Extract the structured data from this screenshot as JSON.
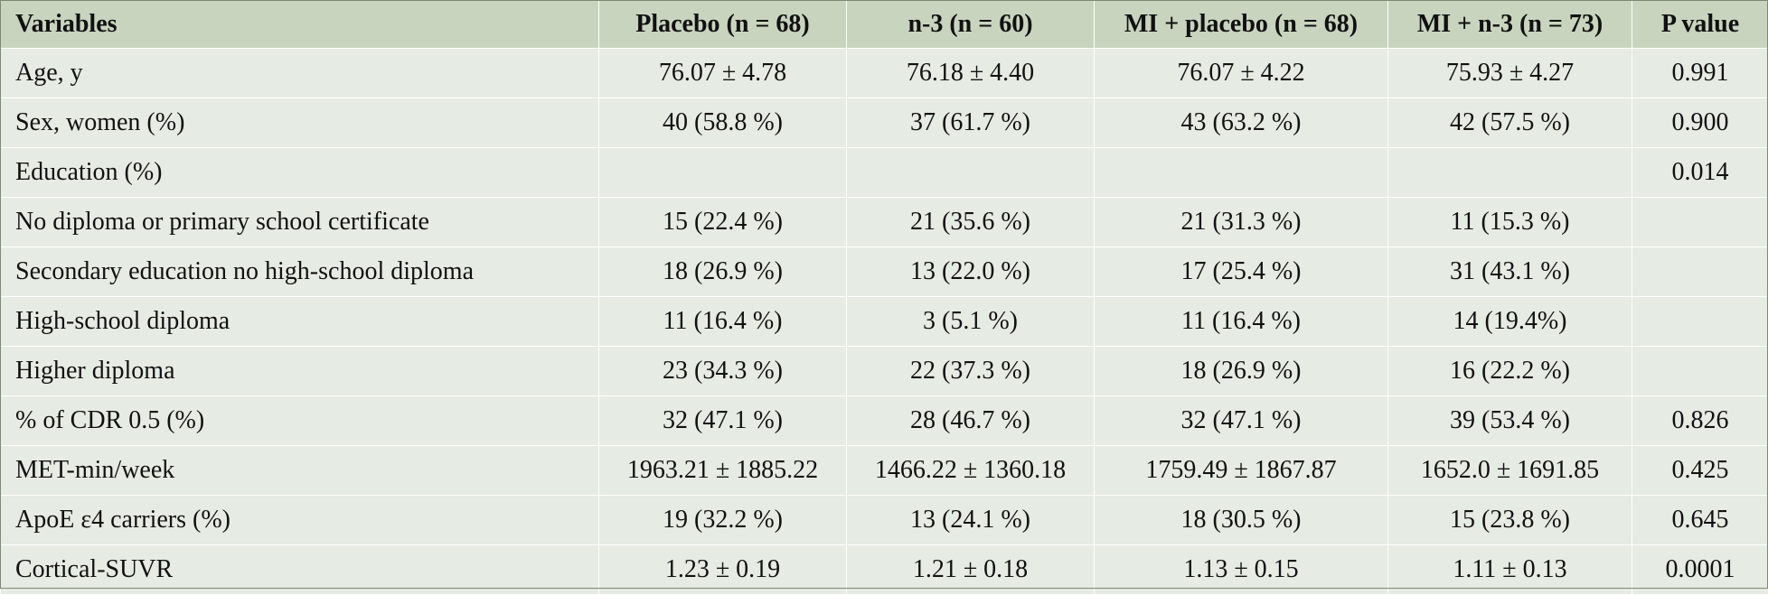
{
  "table": {
    "headers": [
      "Variables",
      "Placebo (n = 68)",
      "n-3 (n = 60)",
      "MI + placebo (n = 68)",
      "MI + n-3 (n = 73)",
      "P value"
    ],
    "rows": [
      [
        "Age, y",
        "76.07 ± 4.78",
        "76.18 ± 4.40",
        "76.07  ± 4.22",
        "75.93  ± 4.27",
        "0.991"
      ],
      [
        "Sex, women (%)",
        "40 (58.8 %)",
        "37 (61.7 %)",
        "43 (63.2 %)",
        "42 (57.5 %)",
        "0.900"
      ],
      [
        "Education (%)",
        "",
        "",
        "",
        "",
        "0.014"
      ],
      [
        "No diploma or primary school certificate",
        "15 (22.4 %)",
        "21 (35.6 %)",
        "21 (31.3 %)",
        "11 (15.3 %)",
        ""
      ],
      [
        "Secondary education no high-school diploma",
        "18 (26.9 %)",
        "13 (22.0 %)",
        "17 (25.4 %)",
        "31 (43.1 %)",
        ""
      ],
      [
        "High-school diploma",
        "11 (16.4 %)",
        "3 (5.1 %)",
        "11 (16.4 %)",
        "14 (19.4%)",
        ""
      ],
      [
        "Higher diploma",
        "23 (34.3 %)",
        "22 (37.3 %)",
        "18 (26.9 %)",
        "16 (22.2 %)",
        ""
      ],
      [
        "% of CDR 0.5 (%)",
        "32 (47.1 %)",
        "28 (46.7 %)",
        "32 (47.1 %)",
        "39 (53.4 %)",
        "0.826"
      ],
      [
        "MET-min/week",
        "1963.21 ± 1885.22",
        "1466.22 ± 1360.18",
        "1759.49 ± 1867.87",
        "1652.0 ± 1691.85",
        "0.425"
      ],
      [
        "ApoE ε4 carriers (%)",
        "19 (32.2 %)",
        "13 (24.1 %)",
        "18 (30.5 %)",
        "15 (23.8 %)",
        "0.645"
      ],
      [
        "Cortical-SUVR",
        "1.23 ± 0.19",
        "1.21 ± 0.18",
        "1.13 ± 0.15",
        "1.11 ± 0.13",
        "0.0001"
      ]
    ]
  },
  "colors": {
    "header_bg": "#c9d4bf",
    "body_bg": "#e6ebe3",
    "grid": "#ffffff"
  }
}
